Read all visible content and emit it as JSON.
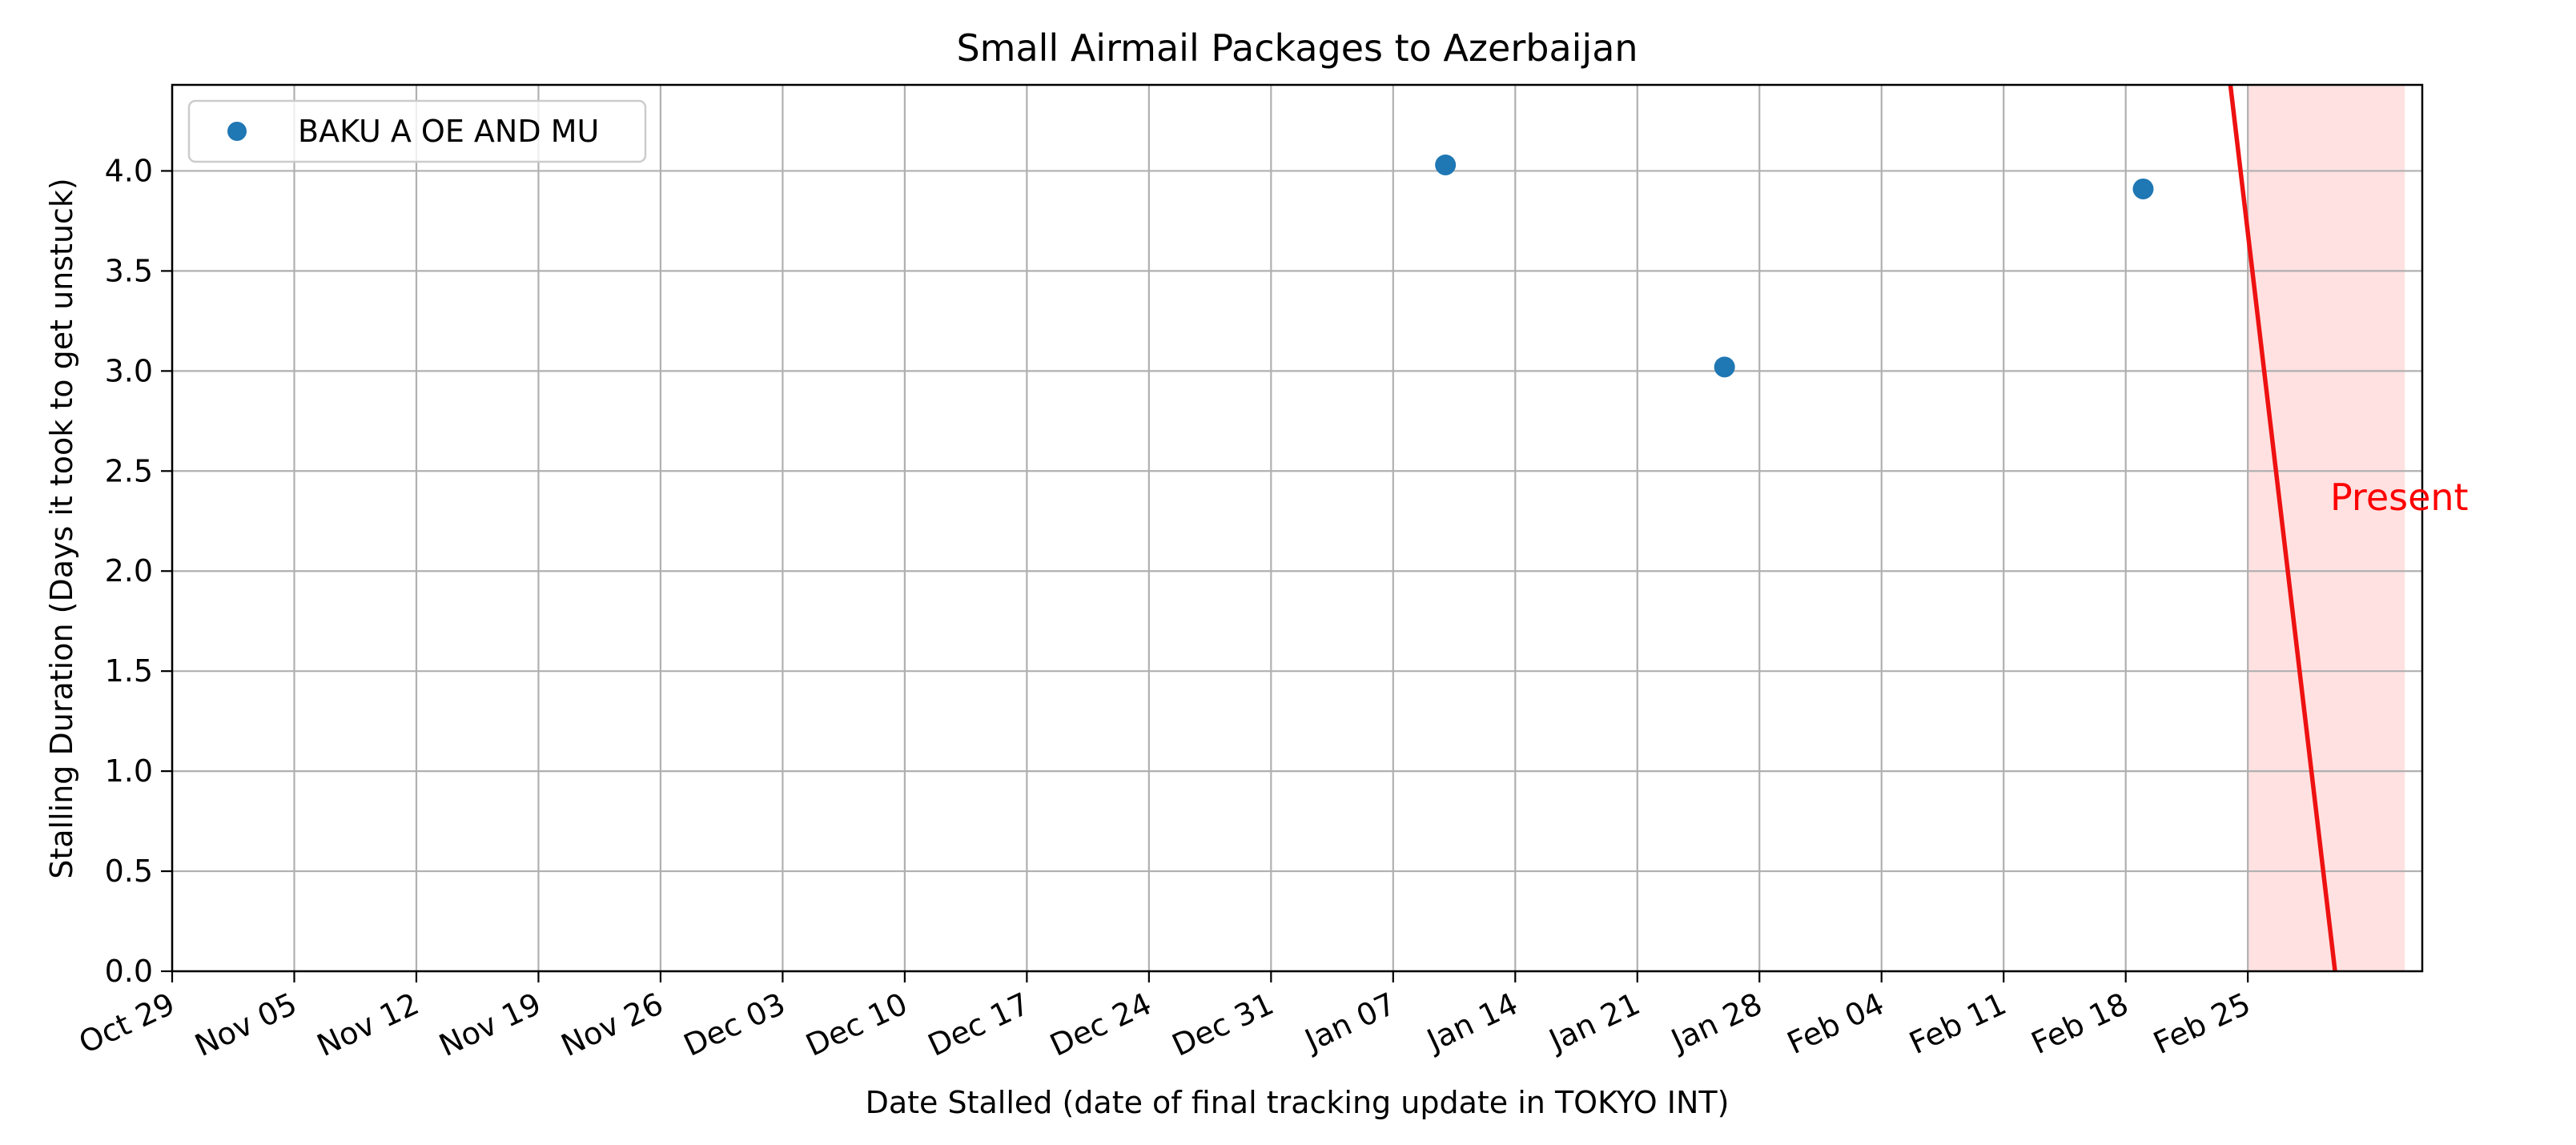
{
  "chart_data": {
    "type": "scatter",
    "title": "Small Airmail Packages to Azerbaijan",
    "xlabel": "Date Stalled (date of final tracking update in TOKYO INT)",
    "ylabel": "Stalling Duration (Days it took to get unstuck)",
    "x_type": "date",
    "xlim": [
      "Oct 29",
      "Mar 06"
    ],
    "ylim": [
      0,
      4.43
    ],
    "y_ticks": [
      "0.0",
      "0.5",
      "1.0",
      "1.5",
      "2.0",
      "2.5",
      "3.0",
      "3.5",
      "4.0"
    ],
    "x_ticks": [
      "Oct 29",
      "Nov 05",
      "Nov 12",
      "Nov 19",
      "Nov 26",
      "Dec 03",
      "Dec 10",
      "Dec 17",
      "Dec 24",
      "Dec 31",
      "Jan 07",
      "Jan 14",
      "Jan 21",
      "Jan 28",
      "Feb 04",
      "Feb 11",
      "Feb 18",
      "Feb 25"
    ],
    "grid": true,
    "legend": {
      "position": "top-left",
      "entries": [
        "BAKU A OE AND MU"
      ]
    },
    "series": [
      {
        "name": "BAKU A OE AND MU",
        "color": "#1f77b4",
        "points": [
          {
            "x": "Jan 10",
            "y": 4.03
          },
          {
            "x": "Jan 26",
            "y": 3.02
          },
          {
            "x": "Feb 19",
            "y": 3.91
          }
        ]
      }
    ],
    "annotation": {
      "text": "Present",
      "color": "#ff0000",
      "line_color": "#ee1111",
      "shade_color": "#ffe1e1",
      "shade_range": [
        "Feb 25",
        "Mar 05"
      ],
      "line_from": {
        "x": "Feb 24",
        "y": 4.43
      },
      "line_to": {
        "x": "Mar 01",
        "y": 0
      }
    }
  }
}
